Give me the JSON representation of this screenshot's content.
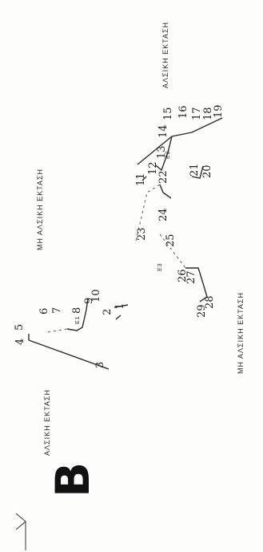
{
  "plan": {
    "orientation_letter": "B",
    "area_labels": {
      "top_left": "ΜΗ ΑΛΣΙΚΗ ΕΚΤΑΣΗ",
      "top_right": "ΑΛΣΙΚΗ ΕΚΤΑΣΗ",
      "bottom_left": "ΑΛΣΙΚΗ ΕΚΤΑΣΗ",
      "bottom_right": "ΜΗ ΑΛΣΙΚΗ ΕΚΤΑΣΗ"
    },
    "region_labels": [
      "Ε1",
      "Ε2",
      "Ε3"
    ],
    "points": [
      "1",
      "2",
      "3",
      "4",
      "5",
      "6",
      "7",
      "8",
      "9",
      "10",
      "11",
      "12",
      "13",
      "14",
      "15",
      "16",
      "17",
      "18",
      "19",
      "20",
      "21",
      "22",
      "23",
      "24",
      "25",
      "26",
      "27",
      "28",
      "29"
    ]
  }
}
